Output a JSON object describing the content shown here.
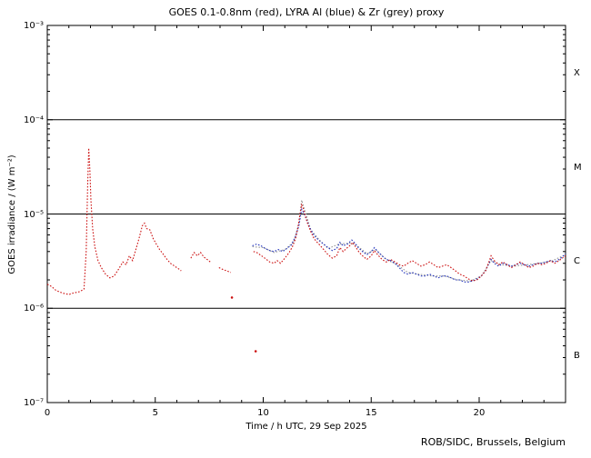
{
  "title": "GOES 0.1-0.8nm (red), LYRA Al (blue) & Zr (grey) proxy",
  "xlabel": "Time / h UTC, 29 Sep 2025",
  "ylabel": "GOES irradiance / (W m⁻²)",
  "credit": "ROB/SIDC, Brussels, Belgium",
  "y_ticks": [
    "10⁻³",
    "10⁻⁴",
    "10⁻⁵",
    "10⁻⁶",
    "10⁻⁷"
  ],
  "x_tick_labels": [
    "0",
    "5",
    "10",
    "15",
    "20"
  ],
  "class_labels": [
    "X",
    "M",
    "C",
    "B"
  ],
  "colors": {
    "red": "#cc1111",
    "blue": "#2233bb",
    "grey": "#9a9a9a",
    "frame": "#000000",
    "background": "#ffffff"
  },
  "chart_data": {
    "type": "scatter",
    "title": "GOES 0.1-0.8nm (red), LYRA Al (blue) & Zr (grey) proxy",
    "xlabel": "Time / h UTC, 29 Sep 2025",
    "ylabel": "GOES irradiance / (W m^-2)",
    "x_range": [
      0,
      24
    ],
    "y_range": [
      1e-07,
      0.001
    ],
    "y_scale": "log",
    "x_major_ticks": [
      0,
      5,
      10,
      15,
      20
    ],
    "x_minor_step": 1,
    "hlines": [
      0.0001,
      1e-05,
      1e-06
    ],
    "flare_classes": [
      {
        "label": "X",
        "between": [
          0.0001,
          0.001
        ]
      },
      {
        "label": "M",
        "between": [
          1e-05,
          0.0001
        ]
      },
      {
        "label": "C",
        "between": [
          1e-06,
          1e-05
        ]
      },
      {
        "label": "B",
        "between": [
          1e-07,
          1e-06
        ]
      }
    ],
    "series": [
      {
        "name": "LYRA Zr proxy",
        "color": "grey",
        "segments": [
          [
            [
              9.5,
              4.5e-06
            ],
            [
              10,
              4.4e-06
            ],
            [
              10.5,
              3.9e-06
            ],
            [
              11,
              4.2e-06
            ],
            [
              11.4,
              5e-06
            ],
            [
              11.65,
              8e-06
            ],
            [
              11.78,
              1.4e-05
            ],
            [
              11.95,
              1.05e-05
            ],
            [
              12.2,
              6.8e-06
            ],
            [
              12.6,
              5.3e-06
            ],
            [
              13,
              4.3e-06
            ],
            [
              13.5,
              4.8e-06
            ],
            [
              14,
              4.9e-06
            ],
            [
              14.3,
              4.7e-06
            ],
            [
              14.8,
              3.8e-06
            ],
            [
              15.2,
              4.2e-06
            ],
            [
              15.7,
              3.3e-06
            ],
            [
              16.2,
              2.9e-06
            ],
            [
              16.7,
              2.4e-06
            ],
            [
              17.2,
              2.3e-06
            ],
            [
              17.8,
              2.2e-06
            ],
            [
              18.4,
              2.2e-06
            ],
            [
              19,
              2e-06
            ],
            [
              19.6,
              1.95e-06
            ],
            [
              20.1,
              2.2e-06
            ],
            [
              20.55,
              3.2e-06
            ],
            [
              21,
              2.9e-06
            ],
            [
              21.6,
              2.8e-06
            ],
            [
              22.2,
              2.9e-06
            ],
            [
              22.8,
              3e-06
            ],
            [
              23.4,
              3.2e-06
            ],
            [
              24,
              3.7e-06
            ]
          ]
        ],
        "outliers": []
      },
      {
        "name": "LYRA Al proxy",
        "color": "blue",
        "segments": [
          [
            [
              9.5,
              4.6e-06
            ],
            [
              9.7,
              4.8e-06
            ],
            [
              9.9,
              4.6e-06
            ],
            [
              10.1,
              4.3e-06
            ],
            [
              10.3,
              4.1e-06
            ],
            [
              10.5,
              4e-06
            ],
            [
              10.7,
              4.2e-06
            ],
            [
              10.9,
              4e-06
            ],
            [
              11.1,
              4.3e-06
            ],
            [
              11.3,
              4.7e-06
            ],
            [
              11.5,
              5.8e-06
            ],
            [
              11.65,
              7.5e-06
            ],
            [
              11.78,
              1.12e-05
            ],
            [
              11.9,
              1e-05
            ],
            [
              12.0,
              8.8e-06
            ],
            [
              12.15,
              7.2e-06
            ],
            [
              12.3,
              6.2e-06
            ],
            [
              12.45,
              5.6e-06
            ],
            [
              12.6,
              5.2e-06
            ],
            [
              12.8,
              4.8e-06
            ],
            [
              13.0,
              4.4e-06
            ],
            [
              13.2,
              4.1e-06
            ],
            [
              13.4,
              4.3e-06
            ],
            [
              13.55,
              5e-06
            ],
            [
              13.7,
              4.6e-06
            ],
            [
              13.9,
              4.8e-06
            ],
            [
              14.1,
              5.3e-06
            ],
            [
              14.25,
              4.9e-06
            ],
            [
              14.4,
              4.4e-06
            ],
            [
              14.6,
              4e-06
            ],
            [
              14.8,
              3.7e-06
            ],
            [
              15.0,
              4e-06
            ],
            [
              15.15,
              4.4e-06
            ],
            [
              15.3,
              4e-06
            ],
            [
              15.5,
              3.6e-06
            ],
            [
              15.7,
              3.3e-06
            ],
            [
              15.9,
              3.2e-06
            ],
            [
              16.1,
              3e-06
            ],
            [
              16.3,
              2.7e-06
            ],
            [
              16.5,
              2.4e-06
            ],
            [
              16.7,
              2.3e-06
            ],
            [
              16.9,
              2.4e-06
            ],
            [
              17.1,
              2.3e-06
            ],
            [
              17.3,
              2.2e-06
            ],
            [
              17.5,
              2.2e-06
            ],
            [
              17.7,
              2.3e-06
            ],
            [
              17.9,
              2.2e-06
            ],
            [
              18.1,
              2.1e-06
            ],
            [
              18.3,
              2.2e-06
            ],
            [
              18.5,
              2.2e-06
            ],
            [
              18.7,
              2.1e-06
            ],
            [
              18.9,
              2e-06
            ],
            [
              19.1,
              2e-06
            ],
            [
              19.3,
              1.9e-06
            ],
            [
              19.5,
              1.9e-06
            ],
            [
              19.7,
              1.95e-06
            ],
            [
              19.9,
              2.05e-06
            ],
            [
              20.1,
              2.2e-06
            ],
            [
              20.3,
              2.5e-06
            ],
            [
              20.45,
              3e-06
            ],
            [
              20.55,
              3.3e-06
            ],
            [
              20.7,
              3e-06
            ],
            [
              20.9,
              2.8e-06
            ],
            [
              21.1,
              3e-06
            ],
            [
              21.3,
              2.9e-06
            ],
            [
              21.5,
              2.8e-06
            ],
            [
              21.7,
              2.9e-06
            ],
            [
              21.9,
              3e-06
            ],
            [
              22.1,
              2.9e-06
            ],
            [
              22.3,
              2.8e-06
            ],
            [
              22.5,
              2.9e-06
            ],
            [
              22.7,
              3e-06
            ],
            [
              22.9,
              3e-06
            ],
            [
              23.1,
              3.1e-06
            ],
            [
              23.3,
              3.2e-06
            ],
            [
              23.5,
              3.1e-06
            ],
            [
              23.7,
              3.3e-06
            ],
            [
              23.85,
              3.5e-06
            ],
            [
              24,
              3.8e-06
            ]
          ]
        ],
        "outliers": []
      },
      {
        "name": "GOES 0.1-0.8nm",
        "color": "red",
        "segments": [
          [
            [
              0,
              1.8e-06
            ],
            [
              0.2,
              1.7e-06
            ],
            [
              0.4,
              1.55e-06
            ],
            [
              0.7,
              1.45e-06
            ],
            [
              1.0,
              1.4e-06
            ],
            [
              1.2,
              1.45e-06
            ],
            [
              1.5,
              1.5e-06
            ],
            [
              1.7,
              1.6e-06
            ],
            [
              1.8,
              4e-06
            ],
            [
              1.87,
              2e-05
            ],
            [
              1.92,
              5e-05
            ],
            [
              1.97,
              3e-05
            ],
            [
              2.02,
              1.4e-05
            ],
            [
              2.1,
              7e-06
            ],
            [
              2.2,
              4.5e-06
            ],
            [
              2.35,
              3.2e-06
            ],
            [
              2.5,
              2.7e-06
            ],
            [
              2.7,
              2.3e-06
            ],
            [
              2.9,
              2.1e-06
            ],
            [
              3.1,
              2.2e-06
            ],
            [
              3.3,
              2.6e-06
            ],
            [
              3.5,
              3.1e-06
            ],
            [
              3.65,
              2.9e-06
            ],
            [
              3.8,
              3.6e-06
            ],
            [
              3.95,
              3.2e-06
            ],
            [
              4.1,
              4.2e-06
            ],
            [
              4.25,
              5.5e-06
            ],
            [
              4.4,
              7.5e-06
            ],
            [
              4.5,
              8e-06
            ],
            [
              4.6,
              7e-06
            ],
            [
              4.75,
              6.8e-06
            ],
            [
              4.9,
              5.5e-06
            ],
            [
              5.05,
              4.8e-06
            ],
            [
              5.2,
              4.2e-06
            ],
            [
              5.35,
              3.8e-06
            ],
            [
              5.5,
              3.4e-06
            ],
            [
              5.7,
              3e-06
            ],
            [
              5.9,
              2.8e-06
            ],
            [
              6.1,
              2.6e-06
            ],
            [
              6.2,
              2.5e-06
            ]
          ],
          [
            [
              6.65,
              3.4e-06
            ],
            [
              6.8,
              3.9e-06
            ],
            [
              6.95,
              3.6e-06
            ],
            [
              7.1,
              3.9e-06
            ],
            [
              7.25,
              3.5e-06
            ],
            [
              7.4,
              3.3e-06
            ],
            [
              7.55,
              3.1e-06
            ]
          ],
          [
            [
              7.95,
              2.7e-06
            ],
            [
              8.1,
              2.6e-06
            ],
            [
              8.3,
              2.5e-06
            ],
            [
              8.5,
              2.4e-06
            ]
          ],
          [
            [
              9.55,
              4e-06
            ],
            [
              9.7,
              3.9e-06
            ],
            [
              9.85,
              3.7e-06
            ],
            [
              10.0,
              3.5e-06
            ],
            [
              10.15,
              3.3e-06
            ],
            [
              10.3,
              3.1e-06
            ],
            [
              10.5,
              3e-06
            ],
            [
              10.65,
              3.2e-06
            ],
            [
              10.8,
              3e-06
            ],
            [
              11.0,
              3.4e-06
            ],
            [
              11.2,
              3.9e-06
            ],
            [
              11.35,
              4.5e-06
            ],
            [
              11.5,
              5.5e-06
            ],
            [
              11.6,
              7e-06
            ],
            [
              11.7,
              1e-05
            ],
            [
              11.78,
              1.25e-05
            ],
            [
              11.85,
              1.15e-05
            ],
            [
              11.95,
              9.5e-06
            ],
            [
              12.05,
              8e-06
            ],
            [
              12.2,
              6.5e-06
            ],
            [
              12.35,
              5.5e-06
            ],
            [
              12.5,
              5e-06
            ],
            [
              12.65,
              4.6e-06
            ],
            [
              12.8,
              4.2e-06
            ],
            [
              13.0,
              3.7e-06
            ],
            [
              13.2,
              3.4e-06
            ],
            [
              13.4,
              3.6e-06
            ],
            [
              13.55,
              4.4e-06
            ],
            [
              13.7,
              4e-06
            ],
            [
              13.85,
              4.3e-06
            ],
            [
              14.0,
              4.6e-06
            ],
            [
              14.15,
              5e-06
            ],
            [
              14.3,
              4.4e-06
            ],
            [
              14.45,
              3.9e-06
            ],
            [
              14.6,
              3.6e-06
            ],
            [
              14.8,
              3.3e-06
            ],
            [
              15.0,
              3.6e-06
            ],
            [
              15.15,
              4.1e-06
            ],
            [
              15.3,
              3.7e-06
            ],
            [
              15.5,
              3.3e-06
            ],
            [
              15.7,
              3.1e-06
            ],
            [
              15.9,
              3.3e-06
            ],
            [
              16.1,
              3.1e-06
            ],
            [
              16.3,
              2.9e-06
            ],
            [
              16.5,
              2.8e-06
            ],
            [
              16.7,
              3e-06
            ],
            [
              16.9,
              3.2e-06
            ],
            [
              17.1,
              3e-06
            ],
            [
              17.3,
              2.8e-06
            ],
            [
              17.5,
              2.9e-06
            ],
            [
              17.7,
              3.1e-06
            ],
            [
              17.9,
              2.9e-06
            ],
            [
              18.1,
              2.7e-06
            ],
            [
              18.3,
              2.8e-06
            ],
            [
              18.5,
              2.9e-06
            ],
            [
              18.7,
              2.7e-06
            ],
            [
              18.9,
              2.5e-06
            ],
            [
              19.1,
              2.3e-06
            ],
            [
              19.3,
              2.2e-06
            ],
            [
              19.5,
              2.05e-06
            ],
            [
              19.7,
              1.95e-06
            ],
            [
              19.9,
              2e-06
            ],
            [
              20.1,
              2.2e-06
            ],
            [
              20.3,
              2.5e-06
            ],
            [
              20.45,
              3.1e-06
            ],
            [
              20.55,
              3.6e-06
            ],
            [
              20.7,
              3.2e-06
            ],
            [
              20.9,
              2.9e-06
            ],
            [
              21.1,
              3.1e-06
            ],
            [
              21.3,
              2.9e-06
            ],
            [
              21.5,
              2.7e-06
            ],
            [
              21.7,
              2.9e-06
            ],
            [
              21.9,
              3.1e-06
            ],
            [
              22.1,
              2.9e-06
            ],
            [
              22.3,
              2.7e-06
            ],
            [
              22.5,
              2.8e-06
            ],
            [
              22.7,
              3e-06
            ],
            [
              22.9,
              2.9e-06
            ],
            [
              23.1,
              3e-06
            ],
            [
              23.3,
              3.2e-06
            ],
            [
              23.5,
              3e-06
            ],
            [
              23.7,
              3.2e-06
            ],
            [
              23.85,
              3.4e-06
            ],
            [
              24,
              3.6e-06
            ]
          ]
        ],
        "outliers": [
          [
            8.55,
            1.3e-06
          ],
          [
            9.65,
            3.5e-07
          ]
        ]
      }
    ]
  }
}
